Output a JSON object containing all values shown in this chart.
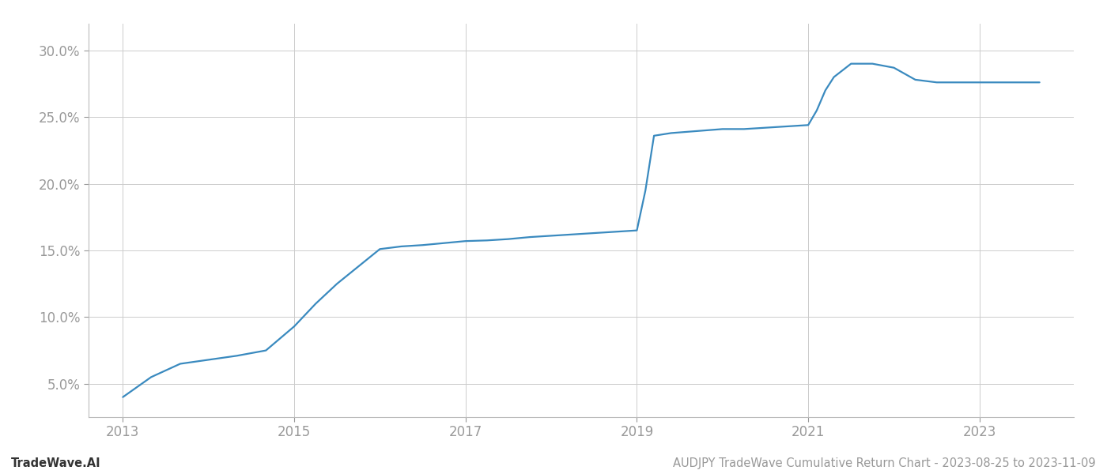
{
  "footer_left": "TradeWave.AI",
  "footer_right": "AUDJPY TradeWave Cumulative Return Chart - 2023-08-25 to 2023-11-09",
  "line_color": "#3a8abf",
  "background_color": "#ffffff",
  "grid_color": "#cccccc",
  "x_values": [
    2013.0,
    2013.33,
    2013.67,
    2014.0,
    2014.33,
    2014.67,
    2015.0,
    2015.25,
    2015.5,
    2015.75,
    2016.0,
    2016.25,
    2016.5,
    2016.75,
    2017.0,
    2017.25,
    2017.5,
    2017.75,
    2018.0,
    2018.25,
    2018.5,
    2018.75,
    2019.0,
    2019.1,
    2019.2,
    2019.4,
    2019.6,
    2019.8,
    2020.0,
    2020.25,
    2020.5,
    2020.75,
    2021.0,
    2021.1,
    2021.2,
    2021.3,
    2021.5,
    2021.75,
    2022.0,
    2022.25,
    2022.5,
    2022.75,
    2023.0,
    2023.3,
    2023.7
  ],
  "y_values": [
    4.0,
    5.5,
    6.5,
    6.8,
    7.1,
    7.5,
    9.3,
    11.0,
    12.5,
    13.8,
    15.1,
    15.3,
    15.4,
    15.55,
    15.7,
    15.75,
    15.85,
    16.0,
    16.1,
    16.2,
    16.3,
    16.4,
    16.5,
    19.5,
    23.6,
    23.8,
    23.9,
    24.0,
    24.1,
    24.1,
    24.2,
    24.3,
    24.4,
    25.5,
    27.0,
    28.0,
    29.0,
    29.0,
    28.7,
    27.8,
    27.6,
    27.6,
    27.6,
    27.6,
    27.6
  ],
  "x_ticks": [
    2013,
    2015,
    2017,
    2019,
    2021,
    2023
  ],
  "y_ticks": [
    5.0,
    10.0,
    15.0,
    20.0,
    25.0,
    30.0
  ],
  "xlim": [
    2012.6,
    2024.1
  ],
  "ylim": [
    2.5,
    32.0
  ],
  "tick_color": "#999999",
  "tick_fontsize": 12,
  "footer_fontsize": 10.5,
  "line_width": 1.6
}
